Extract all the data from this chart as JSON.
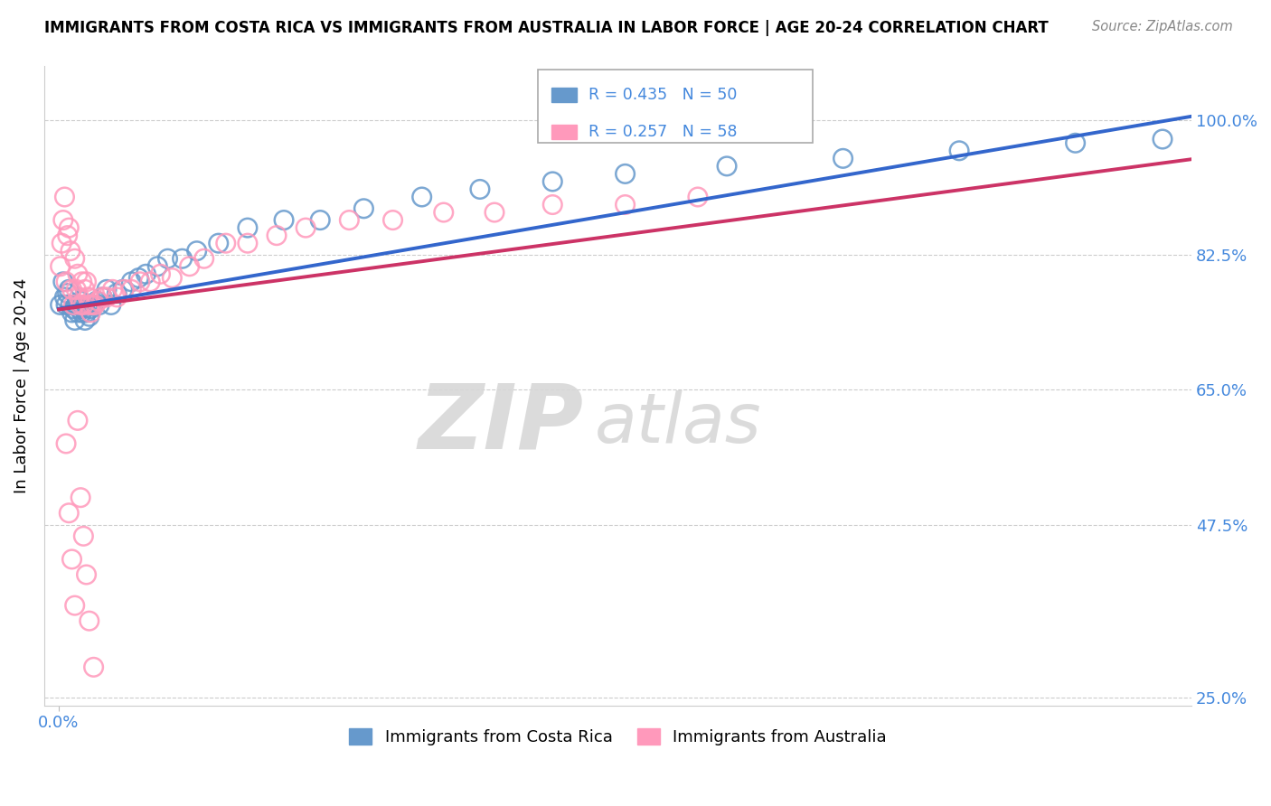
{
  "title": "IMMIGRANTS FROM COSTA RICA VS IMMIGRANTS FROM AUSTRALIA IN LABOR FORCE | AGE 20-24 CORRELATION CHART",
  "source": "Source: ZipAtlas.com",
  "ylabel": "In Labor Force | Age 20-24",
  "costa_rica_color": "#6699cc",
  "australia_color": "#ff99bb",
  "costa_rica_line_color": "#3366cc",
  "australia_line_color": "#cc3366",
  "watermark_zip": "ZIP",
  "watermark_atlas": "atlas",
  "legend_r1": "R = 0.435",
  "legend_n1": "N = 50",
  "legend_r2": "R = 0.257",
  "legend_n2": "N = 58",
  "xlim_max": 0.78,
  "ylim_min": 0.24,
  "ylim_max": 1.07,
  "yticks": [
    0.25,
    0.475,
    0.65,
    0.825,
    1.0
  ],
  "ytick_labels": [
    "25.0%",
    "47.5%",
    "65.0%",
    "82.5%",
    "100.0%"
  ],
  "cr_x": [
    0.001,
    0.003,
    0.004,
    0.005,
    0.006,
    0.007,
    0.008,
    0.009,
    0.01,
    0.011,
    0.012,
    0.013,
    0.014,
    0.015,
    0.016,
    0.017,
    0.018,
    0.019,
    0.02,
    0.021,
    0.022,
    0.024,
    0.026,
    0.028,
    0.03,
    0.033,
    0.036,
    0.04,
    0.044,
    0.05,
    0.055,
    0.06,
    0.068,
    0.075,
    0.085,
    0.095,
    0.11,
    0.13,
    0.155,
    0.18,
    0.21,
    0.25,
    0.29,
    0.34,
    0.39,
    0.46,
    0.54,
    0.62,
    0.7,
    0.76
  ],
  "cr_y": [
    0.76,
    0.79,
    0.77,
    0.76,
    0.775,
    0.78,
    0.76,
    0.75,
    0.755,
    0.74,
    0.76,
    0.75,
    0.755,
    0.765,
    0.75,
    0.755,
    0.74,
    0.75,
    0.76,
    0.745,
    0.755,
    0.76,
    0.765,
    0.76,
    0.77,
    0.78,
    0.76,
    0.775,
    0.78,
    0.79,
    0.795,
    0.8,
    0.81,
    0.82,
    0.82,
    0.83,
    0.84,
    0.86,
    0.87,
    0.87,
    0.885,
    0.9,
    0.91,
    0.92,
    0.93,
    0.94,
    0.95,
    0.96,
    0.97,
    0.975
  ],
  "au_x": [
    0.001,
    0.002,
    0.003,
    0.004,
    0.005,
    0.006,
    0.007,
    0.008,
    0.009,
    0.01,
    0.011,
    0.012,
    0.013,
    0.014,
    0.015,
    0.016,
    0.017,
    0.018,
    0.019,
    0.02,
    0.021,
    0.022,
    0.023,
    0.025,
    0.027,
    0.03,
    0.033,
    0.037,
    0.04,
    0.045,
    0.05,
    0.056,
    0.063,
    0.07,
    0.078,
    0.09,
    0.1,
    0.115,
    0.13,
    0.15,
    0.17,
    0.2,
    0.23,
    0.265,
    0.3,
    0.34,
    0.39,
    0.44,
    0.005,
    0.007,
    0.009,
    0.011,
    0.013,
    0.015,
    0.017,
    0.019,
    0.021,
    0.024
  ],
  "au_y": [
    0.81,
    0.84,
    0.87,
    0.9,
    0.79,
    0.85,
    0.86,
    0.83,
    0.78,
    0.76,
    0.82,
    0.78,
    0.8,
    0.77,
    0.76,
    0.79,
    0.76,
    0.78,
    0.79,
    0.77,
    0.76,
    0.75,
    0.76,
    0.76,
    0.765,
    0.77,
    0.77,
    0.78,
    0.77,
    0.78,
    0.78,
    0.79,
    0.79,
    0.8,
    0.795,
    0.81,
    0.82,
    0.84,
    0.84,
    0.85,
    0.86,
    0.87,
    0.87,
    0.88,
    0.88,
    0.89,
    0.89,
    0.9,
    0.58,
    0.49,
    0.43,
    0.37,
    0.61,
    0.51,
    0.46,
    0.41,
    0.35,
    0.29
  ]
}
